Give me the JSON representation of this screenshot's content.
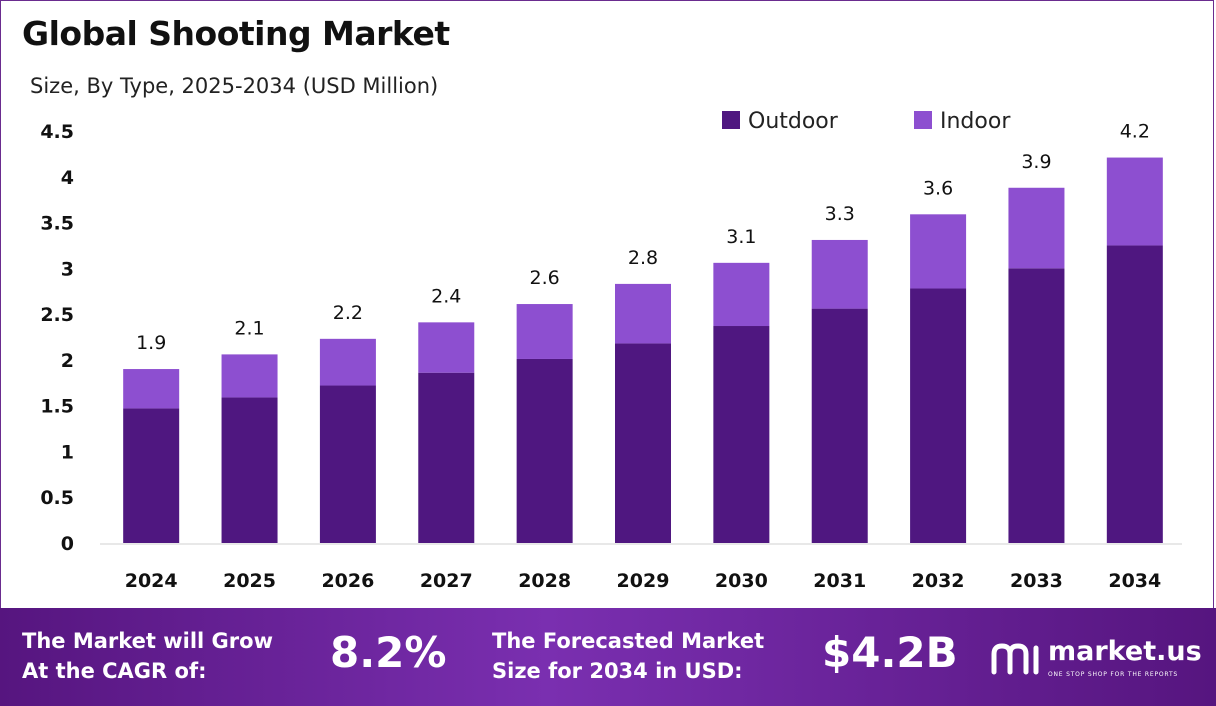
{
  "title": "Global Shooting Market",
  "subtitle": "Size, By Type, 2025-2034 (USD Million)",
  "chart_data": {
    "type": "bar",
    "stacked": true,
    "categories": [
      "2024",
      "2025",
      "2026",
      "2027",
      "2028",
      "2029",
      "2030",
      "2031",
      "2032",
      "2033",
      "2034"
    ],
    "series": [
      {
        "name": "Outdoor",
        "color": "#4f1780",
        "values": [
          1.47,
          1.59,
          1.72,
          1.86,
          2.01,
          2.18,
          2.37,
          2.56,
          2.78,
          3.0,
          3.25
        ]
      },
      {
        "name": "Indoor",
        "color": "#8d4fd0",
        "values": [
          0.43,
          0.47,
          0.51,
          0.55,
          0.6,
          0.65,
          0.69,
          0.75,
          0.81,
          0.88,
          0.96
        ]
      }
    ],
    "totals_labels": [
      "1.9",
      "2.1",
      "2.2",
      "2.4",
      "2.6",
      "2.8",
      "3.1",
      "3.3",
      "3.6",
      "3.9",
      "4.2"
    ],
    "totals": [
      1.9,
      2.06,
      2.23,
      2.41,
      2.61,
      2.83,
      3.06,
      3.31,
      3.59,
      3.88,
      4.21
    ],
    "yticks": [
      "0",
      "0.5",
      "1",
      "1.5",
      "2",
      "2.5",
      "3",
      "3.5",
      "4",
      "4.5"
    ],
    "ylim": [
      0,
      4.5
    ],
    "legend_position": "top-right",
    "grid": false
  },
  "footer": {
    "cagr_label_line1": "The Market will Grow",
    "cagr_label_line2": "At the CAGR of:",
    "cagr_value": "8.2%",
    "forecast_label_line1": "The Forecasted Market",
    "forecast_label_line2": "Size for 2034 in USD:",
    "forecast_value": "$4.2B",
    "brand_name": "market.us",
    "brand_tagline": "ONE STOP SHOP FOR THE REPORTS"
  }
}
